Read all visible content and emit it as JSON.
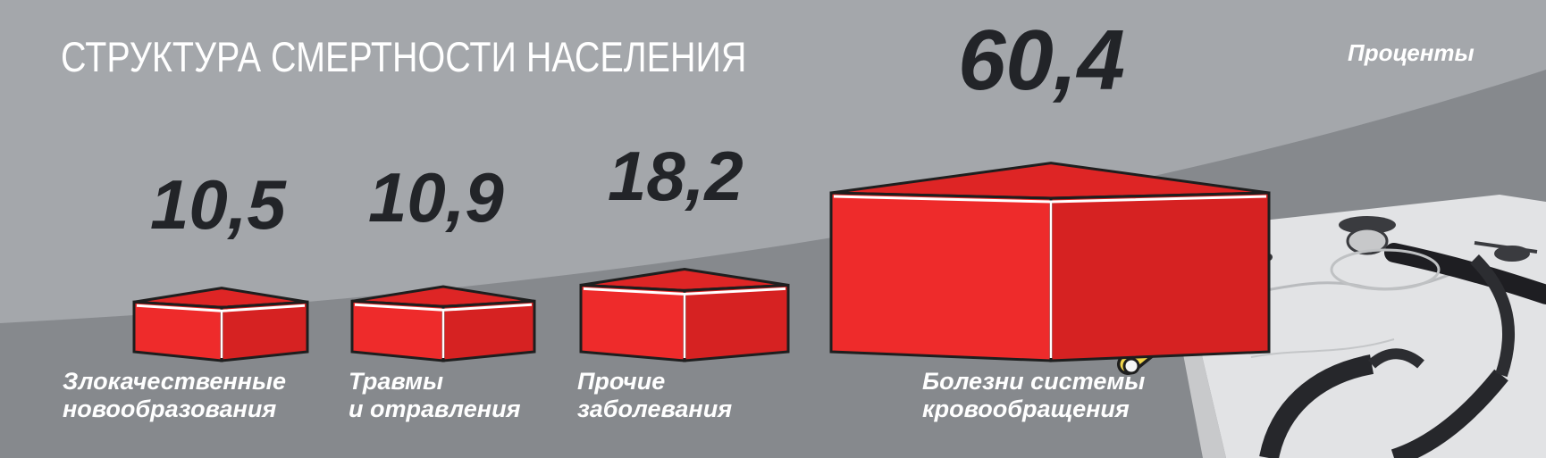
{
  "title": "СТРУКТУРА СМЕРТНОСТИ НАСЕЛЕНИЯ",
  "units": "Проценты",
  "colors": {
    "bar_front": "#ee2b2b",
    "bar_side": "#d62222",
    "bar_top": "#de2525",
    "bar_outline": "#1e1e1e",
    "bar_edge": "#ffffff",
    "value_text": "#222428",
    "label_text": "#ffffff"
  },
  "chart_data": {
    "type": "bar",
    "title": "СТРУКТУРА СМЕРТНОСТИ НАСЕЛЕНИЯ",
    "ylabel": "Проценты",
    "categories": [
      [
        "Злокачественные",
        "новообразования"
      ],
      [
        "Травмы",
        "и отравления"
      ],
      [
        "Прочие",
        "заболевания"
      ],
      [
        "Болезни системы",
        "кровообращения"
      ]
    ],
    "values": [
      10.5,
      10.9,
      18.2,
      60.4
    ],
    "value_labels": [
      "10,5",
      "10,9",
      "18,2",
      "60,4"
    ]
  }
}
